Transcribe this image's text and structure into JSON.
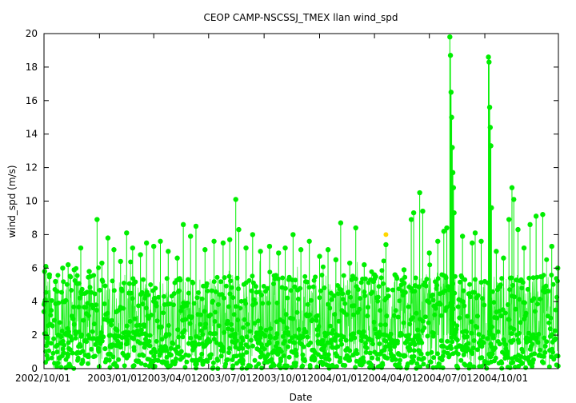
{
  "chart_data": {
    "type": "scatter",
    "title": "CEOP CAMP-NSCSSJ_TMEX llan  wind_spd",
    "xlabel": "Date",
    "ylabel": "wind_spd (m/s)",
    "x_range": [
      "2002-10-01",
      "2005-01-31"
    ],
    "ylim": [
      0,
      20
    ],
    "y_ticks": [
      0,
      2,
      4,
      6,
      8,
      10,
      12,
      14,
      16,
      18,
      20
    ],
    "x_ticks": [
      "2002/10/01",
      "2003/01/01",
      "2003/04/01",
      "2003/07/01",
      "2003/10/01",
      "2004/01/01",
      "2004/04/01",
      "2004/07/01",
      "2004/10/01"
    ],
    "grid": false,
    "legend": "none",
    "series_color": "#00ee00",
    "flagged_color": "#ffd700",
    "series": [
      {
        "points": [
          [
            "2002-10-01",
            3.4
          ],
          [
            "2002-10-02",
            5.8
          ],
          [
            "2002-10-04",
            6.1
          ],
          [
            "2002-10-10",
            5.6
          ],
          [
            "2002-10-20",
            5.2
          ],
          [
            "2002-11-01",
            6.0
          ],
          [
            "2002-11-10",
            6.2
          ],
          [
            "2002-11-20",
            5.9
          ],
          [
            "2002-12-01",
            7.2
          ],
          [
            "2002-12-15",
            5.8
          ],
          [
            "2002-12-28",
            8.9
          ],
          [
            "2003-01-05",
            6.3
          ],
          [
            "2003-01-15",
            7.8
          ],
          [
            "2003-01-25",
            7.1
          ],
          [
            "2003-02-05",
            6.4
          ],
          [
            "2003-02-15",
            8.1
          ],
          [
            "2003-02-25",
            7.2
          ],
          [
            "2003-03-10",
            6.8
          ],
          [
            "2003-03-20",
            7.5
          ],
          [
            "2003-04-01",
            7.3
          ],
          [
            "2003-04-12",
            7.6
          ],
          [
            "2003-04-25",
            7.0
          ],
          [
            "2003-05-10",
            6.6
          ],
          [
            "2003-05-20",
            8.6
          ],
          [
            "2003-06-01",
            7.9
          ],
          [
            "2003-06-10",
            8.5
          ],
          [
            "2003-06-25",
            7.1
          ],
          [
            "2003-07-10",
            7.6
          ],
          [
            "2003-07-25",
            7.5
          ],
          [
            "2003-08-05",
            7.7
          ],
          [
            "2003-08-15",
            10.1
          ],
          [
            "2003-08-20",
            8.3
          ],
          [
            "2003-09-01",
            7.2
          ],
          [
            "2003-09-12",
            8.0
          ],
          [
            "2003-09-25",
            7.0
          ],
          [
            "2003-10-10",
            7.3
          ],
          [
            "2003-10-25",
            6.9
          ],
          [
            "2003-11-05",
            7.2
          ],
          [
            "2003-11-18",
            8.0
          ],
          [
            "2003-12-01",
            7.1
          ],
          [
            "2003-12-15",
            7.6
          ],
          [
            "2004-01-01",
            6.7
          ],
          [
            "2004-01-15",
            7.1
          ],
          [
            "2004-01-28",
            6.5
          ],
          [
            "2004-02-05",
            8.7
          ],
          [
            "2004-02-20",
            6.3
          ],
          [
            "2004-03-01",
            8.4
          ],
          [
            "2004-03-15",
            6.2
          ],
          [
            "2004-04-01",
            5.6
          ],
          [
            "2004-04-20",
            7.4
          ],
          [
            "2004-05-05",
            5.6
          ],
          [
            "2004-05-20",
            5.9
          ],
          [
            "2004-06-01",
            8.9
          ],
          [
            "2004-06-05",
            9.3
          ],
          [
            "2004-06-15",
            10.5
          ],
          [
            "2004-06-20",
            9.4
          ],
          [
            "2004-07-01",
            6.9
          ],
          [
            "2004-07-15",
            7.6
          ],
          [
            "2004-07-25",
            8.2
          ],
          [
            "2004-07-30",
            8.4
          ],
          [
            "2004-08-04",
            19.8
          ],
          [
            "2004-08-05",
            18.7
          ],
          [
            "2004-08-06",
            16.5
          ],
          [
            "2004-08-07",
            15.0
          ],
          [
            "2004-08-08",
            13.2
          ],
          [
            "2004-08-09",
            11.7
          ],
          [
            "2004-08-10",
            10.8
          ],
          [
            "2004-08-11",
            9.3
          ],
          [
            "2004-08-25",
            7.9
          ],
          [
            "2004-09-10",
            7.5
          ],
          [
            "2004-09-15",
            8.1
          ],
          [
            "2004-09-25",
            7.6
          ],
          [
            "2004-10-07",
            18.6
          ],
          [
            "2004-10-08",
            18.3
          ],
          [
            "2004-10-09",
            15.6
          ],
          [
            "2004-10-10",
            14.4
          ],
          [
            "2004-10-11",
            13.3
          ],
          [
            "2004-10-12",
            9.6
          ],
          [
            "2004-10-20",
            7.0
          ],
          [
            "2004-11-01",
            6.6
          ],
          [
            "2004-11-10",
            8.9
          ],
          [
            "2004-11-15",
            10.8
          ],
          [
            "2004-11-18",
            10.1
          ],
          [
            "2004-11-25",
            8.3
          ],
          [
            "2004-12-05",
            7.2
          ],
          [
            "2004-12-15",
            8.6
          ],
          [
            "2004-12-25",
            9.1
          ],
          [
            "2005-01-05",
            9.2
          ],
          [
            "2005-01-20",
            7.3
          ],
          [
            "2005-01-30",
            6.0
          ]
        ]
      }
    ],
    "flagged_points": [
      [
        "2004-04-20",
        8.0
      ]
    ]
  }
}
